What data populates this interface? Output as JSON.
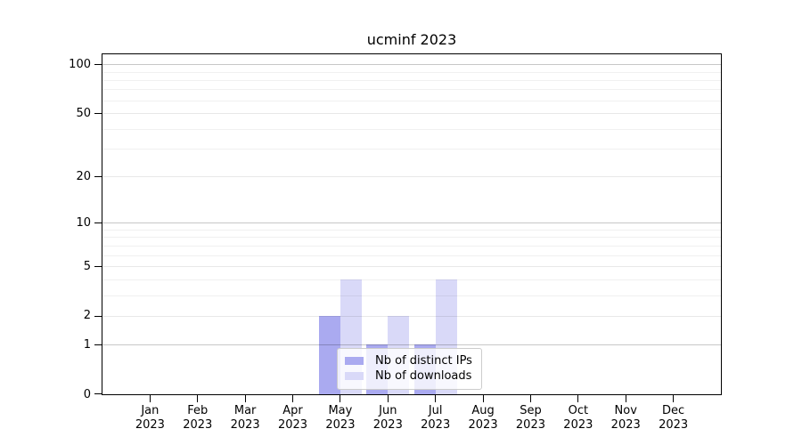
{
  "chart_data": {
    "type": "bar",
    "title": "ucminf 2023",
    "categories": [
      "Jan 2023",
      "Feb 2023",
      "Mar 2023",
      "Apr 2023",
      "May 2023",
      "Jun 2023",
      "Jul 2023",
      "Aug 2023",
      "Sep 2023",
      "Oct 2023",
      "Nov 2023",
      "Dec 2023"
    ],
    "series": [
      {
        "name": "Nb of distinct IPs",
        "color": "#aaaaf0",
        "values": [
          0,
          0,
          0,
          0,
          2,
          1,
          1,
          0,
          0,
          0,
          0,
          0
        ]
      },
      {
        "name": "Nb of downloads",
        "color": "#d9d9f8",
        "values": [
          0,
          0,
          0,
          0,
          4,
          2,
          4,
          0,
          0,
          0,
          0,
          0
        ]
      }
    ],
    "yscale": "log1p",
    "yticks": [
      0,
      1,
      2,
      5,
      10,
      20,
      50,
      100
    ],
    "ylim": [
      0,
      115
    ],
    "xlabel": "",
    "ylabel": "",
    "grid": {
      "decade_lines": [
        1,
        10,
        100
      ],
      "major_lines": [
        2,
        5,
        20,
        50
      ],
      "minor_lines": [
        3,
        4,
        6,
        7,
        8,
        9,
        30,
        40,
        60,
        70,
        80,
        90
      ]
    },
    "legend_position": "lower center"
  },
  "colors": {
    "spine": "#000000",
    "grid_decade": "rgba(0,0,0,0.22)",
    "grid_major": "rgba(0,0,0,0.09)",
    "grid_minor": "rgba(0,0,0,0.06)",
    "legend_border": "#cccccc"
  }
}
